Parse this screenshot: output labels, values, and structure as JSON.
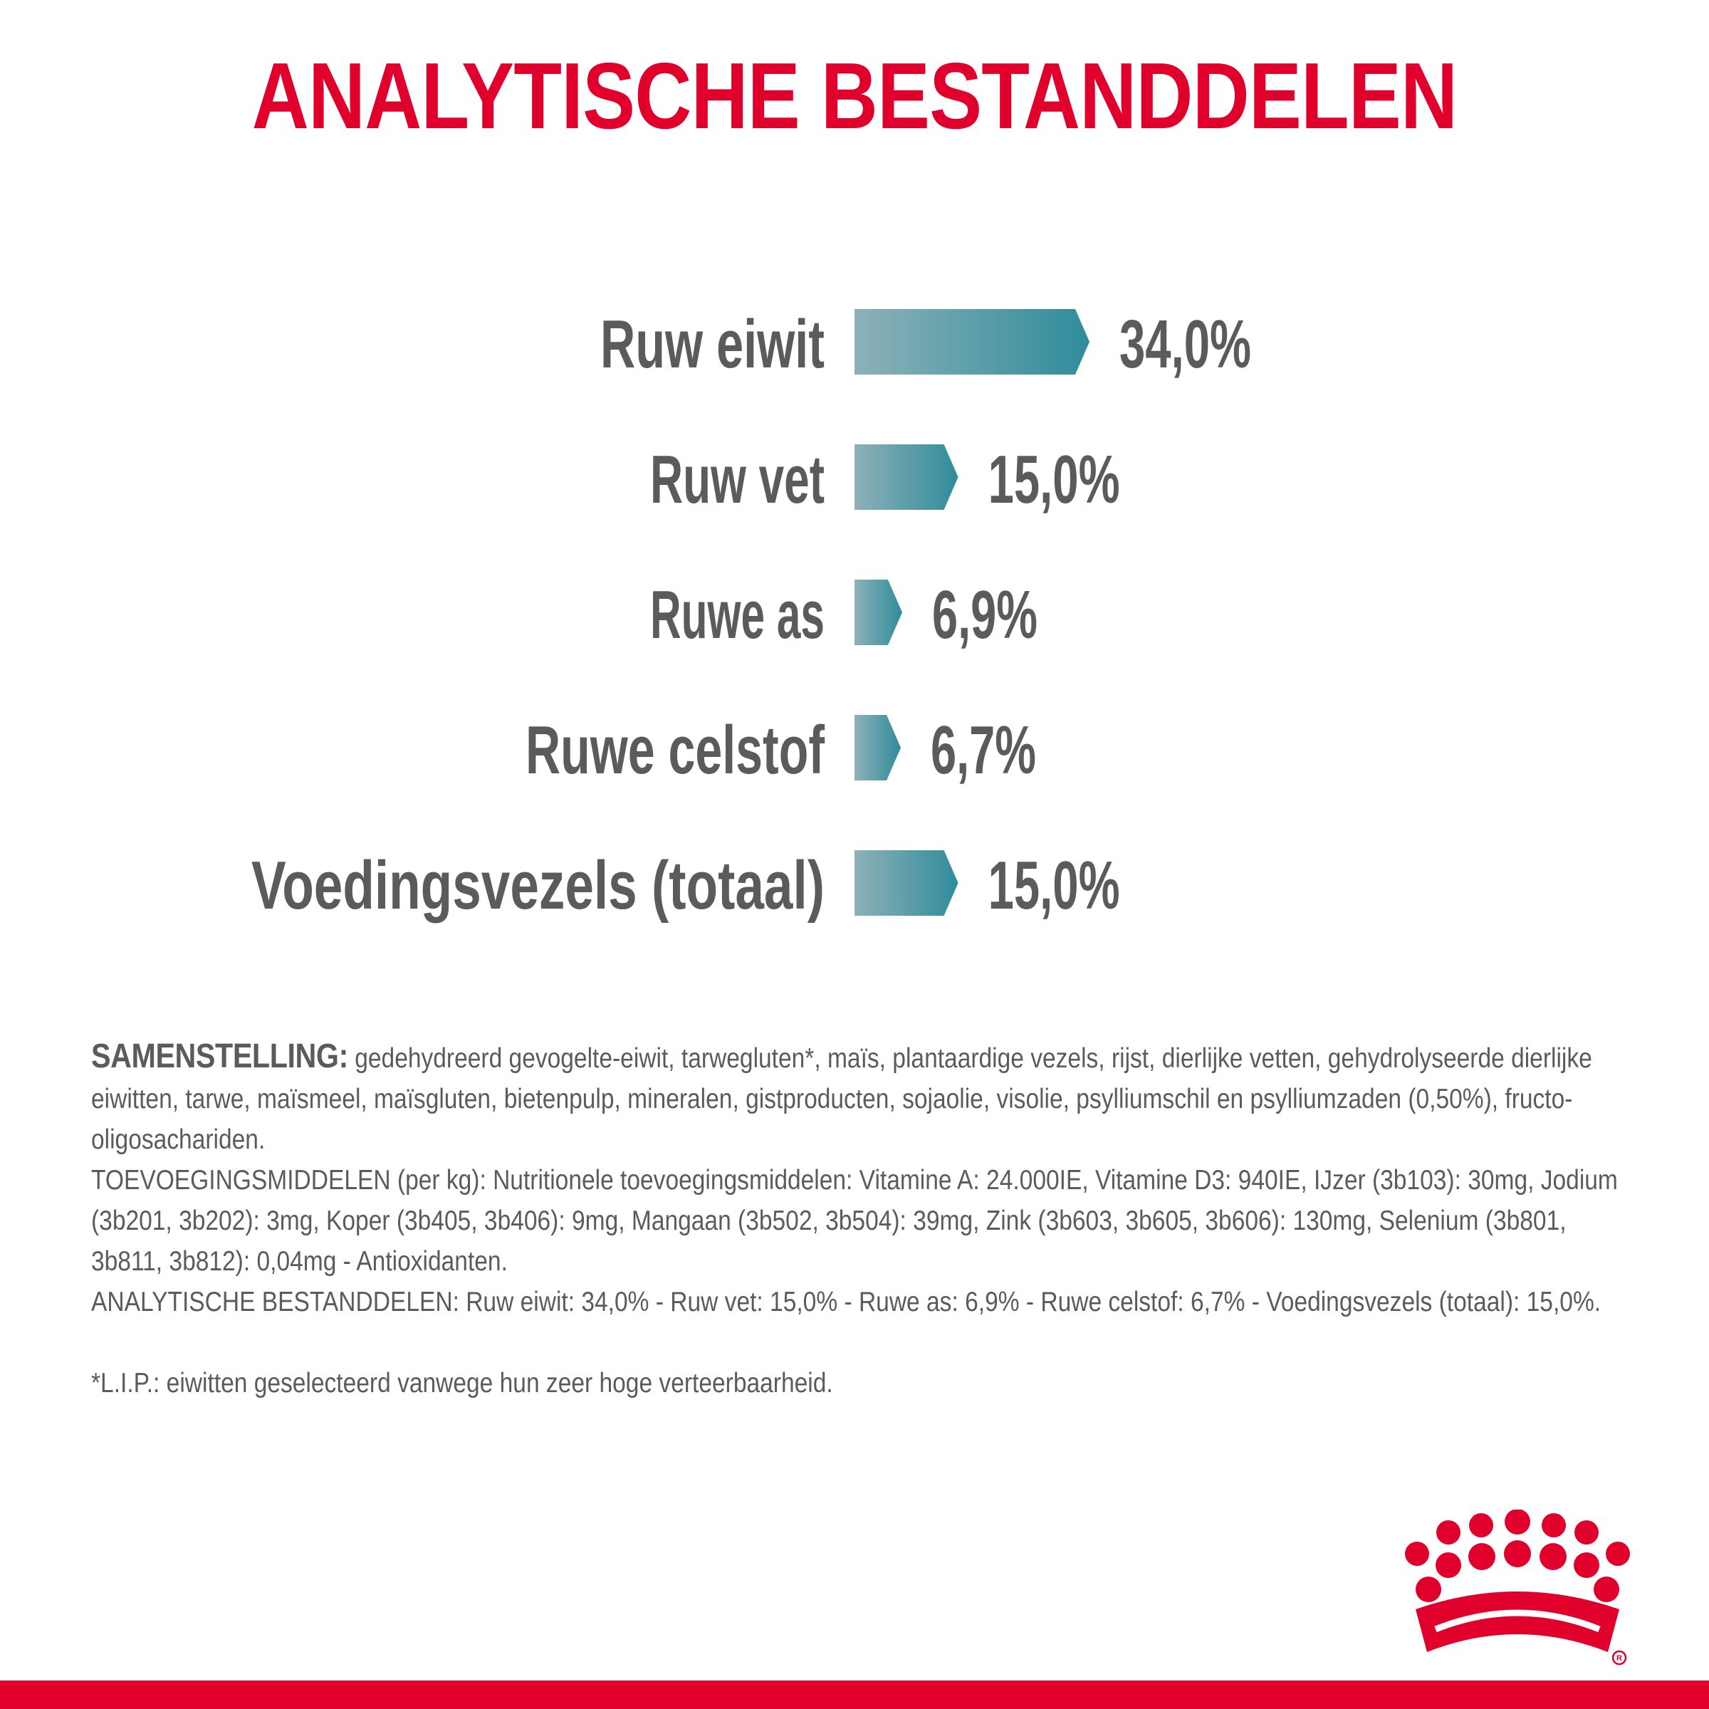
{
  "title": "ANALYTISCHE BESTANDDELEN",
  "colors": {
    "title": "#e0002b",
    "label": "#5b5b5b",
    "bar_start": "#8db1b8",
    "bar_end": "#2f8c9b",
    "brand_red": "#e0002b"
  },
  "chart_data": {
    "type": "bar",
    "orientation": "horizontal",
    "categories": [
      "Ruw eiwit",
      "Ruw vet",
      "Ruwe as",
      "Ruwe celstof",
      "Voedingsvezels (totaal)"
    ],
    "values": [
      34.0,
      15.0,
      6.9,
      6.7,
      15.0
    ],
    "value_labels": [
      "34,0%",
      "15,0%",
      "6,9%",
      "6,7%",
      "15,0%"
    ],
    "unit": "%",
    "xlim": [
      0,
      34.0
    ],
    "title": "",
    "xlabel": "",
    "ylabel": "",
    "grid": false,
    "legend": "none"
  },
  "composition": {
    "heading": "SAMENSTELLING:",
    "ingredients": "gedehydreerd gevogelte-eiwit, tarwegluten*, maïs, plantaardige vezels, rijst, dierlijke vetten, gehydrolyseerde dierlijke eiwitten, tarwe, maïsmeel, maïsgluten, bietenpulp, mineralen, gistproducten, sojaolie, visolie, psylliumschil en psylliumzaden (0,50%), fructo-oligosachariden.",
    "additives": "TOEVOEGINGSMIDDELEN (per kg): Nutritionele toevoegingsmiddelen: Vitamine A: 24.000IE, Vitamine D3: 940IE, IJzer (3b103): 30mg, Jodium (3b201, 3b202): 3mg, Koper (3b405, 3b406): 9mg, Mangaan (3b502, 3b504): 39mg, Zink (3b603, 3b605, 3b606): 130mg, Selenium (3b801, 3b811, 3b812): 0,04mg - Antioxidanten.",
    "analytical": "ANALYTISCHE BESTANDDELEN: Ruw eiwit: 34,0% - Ruw vet: 15,0% - Ruwe as: 6,9% - Ruwe celstof: 6,7% - Voedingsvezels (totaal): 15,0%.",
    "footnote": "*L.I.P.: eiwitten geselecteerd vanwege hun zeer hoge verteerbaarheid."
  },
  "logo": {
    "icon": "crown-icon"
  }
}
